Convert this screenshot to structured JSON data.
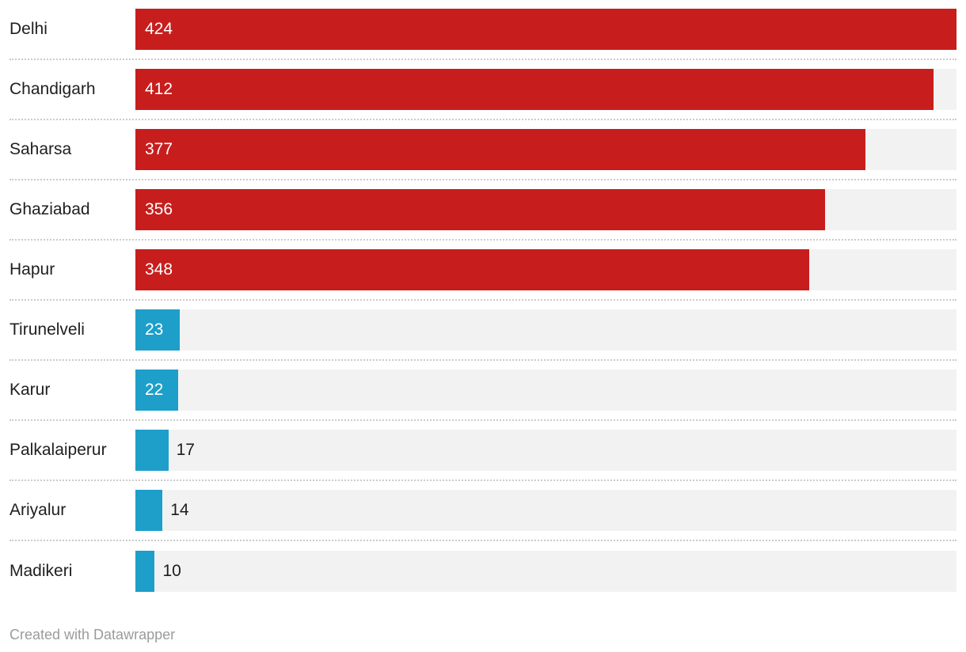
{
  "chart_data": {
    "type": "bar",
    "orientation": "horizontal",
    "title": "",
    "xlabel": "",
    "ylabel": "",
    "categories": [
      "Delhi",
      "Chandigarh",
      "Saharsa",
      "Ghaziabad",
      "Hapur",
      "Tirunelveli",
      "Karur",
      "Palkalaiperur",
      "Ariyalur",
      "Madikeri"
    ],
    "values": [
      424,
      412,
      377,
      356,
      348,
      23,
      22,
      17,
      14,
      10
    ],
    "bar_colors": [
      "#c71e1d",
      "#c71e1d",
      "#c71e1d",
      "#c71e1d",
      "#c71e1d",
      "#1d9fc9",
      "#1d9fc9",
      "#1d9fc9",
      "#1d9fc9",
      "#1d9fc9"
    ],
    "xlim": [
      0,
      424
    ],
    "grid": false,
    "legend": "none",
    "value_label_placement": "inside bar when bar is wide enough, otherwise right of bar"
  },
  "colors": {
    "red_bar": "#c71e1d",
    "blue_bar": "#1d9fc9",
    "track_background": "#f2f2f2",
    "row_divider": "#cbcbcb",
    "category_text": "#202020",
    "value_inside_text": "#ffffff",
    "value_outside_text": "#1d1d1d",
    "footer_text": "#9b9b9b"
  },
  "footer": {
    "text": "Created with Datawrapper"
  }
}
